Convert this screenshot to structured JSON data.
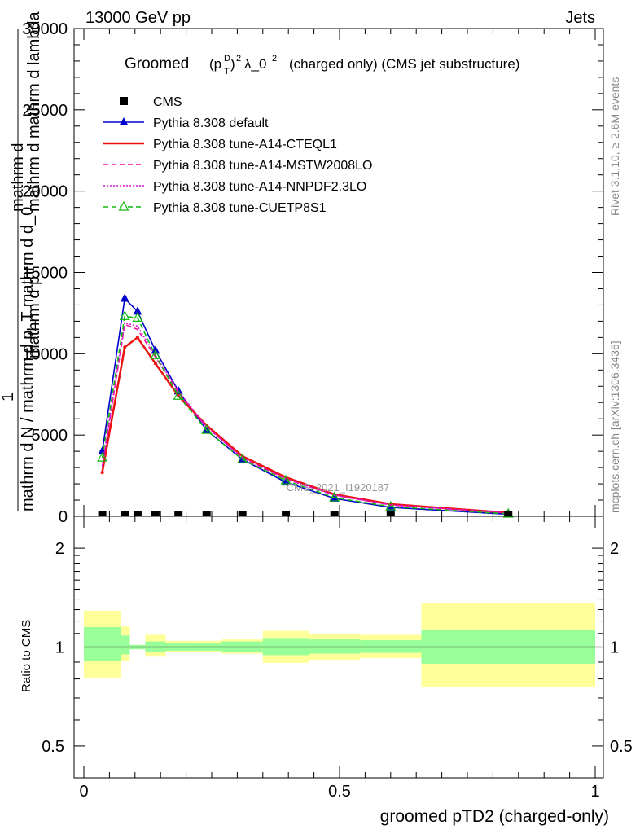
{
  "header": {
    "left": "13000 GeV pp",
    "right": "Jets",
    "right_side_1": "Rivet 3.1.10, ≥ 2.6M events",
    "right_side_2": "mcplots.cern.ch [arXiv:1306.3436]"
  },
  "main_panel": {
    "title_prefix": "Groomed",
    "title_sup1": "D",
    "title_sub1": "T",
    "title_sup2": "2",
    "title_lambda": "λ_0",
    "title_sup3": "2",
    "title_suffix": "(charged only) (CMS jet substructure)",
    "ylabel_top": "mathrm d",
    "ylabel_top_sup": "2",
    "ylabel_top2": "N",
    "ylabel_mid": "mathrm d p",
    "ylabel_mid_sub": "T",
    "ylabel_mid2": "mathrm d mathrm d lambda",
    "ylabel_frac_top": "1",
    "ylabel_bottom": "mathrm d N / mathrm d p_T mathrm d d_0",
    "watermark": "CMS_2021_I1920187",
    "yticks": [
      "0",
      "5000",
      "10000",
      "15000",
      "20000",
      "25000",
      "30000"
    ]
  },
  "ratio_panel": {
    "ylabel": "Ratio to CMS",
    "yticks": [
      "0.5",
      "1",
      "2"
    ]
  },
  "xaxis": {
    "label": "groomed pTD2 (charged-only)",
    "ticks": [
      "0",
      "0.5",
      "1"
    ]
  },
  "legend": [
    {
      "label": "CMS",
      "color": "#000000",
      "style": "square"
    },
    {
      "label": "Pythia 8.308 default",
      "color": "#0000cc",
      "style": "solid-triangle"
    },
    {
      "label": "Pythia 8.308 tune-A14-CTEQL1",
      "color": "#ee1111",
      "style": "solid"
    },
    {
      "label": "Pythia 8.308 tune-A14-MSTW2008LO",
      "color": "#ee1199",
      "style": "dashed"
    },
    {
      "label": "Pythia 8.308 tune-A14-NNPDF2.3LO",
      "color": "#dd11dd",
      "style": "dotted"
    },
    {
      "label": "Pythia 8.308 tune-CUETP8S1",
      "color": "#11bb11",
      "style": "dashed-open-triangle"
    }
  ],
  "chart_data": [
    {
      "type": "line",
      "xlim": [
        0,
        1
      ],
      "ylim": [
        0,
        30000
      ],
      "x": [
        0.036,
        0.08,
        0.105,
        0.14,
        0.185,
        0.24,
        0.31,
        0.395,
        0.49,
        0.6,
        0.83
      ],
      "cms_x": [
        0.036,
        0.08,
        0.105,
        0.14,
        0.185,
        0.24,
        0.31,
        0.395,
        0.49,
        0.6,
        0.83
      ],
      "cms_values": [
        0,
        0,
        0,
        0,
        0,
        0,
        0,
        0,
        0,
        0,
        0
      ],
      "series": [
        {
          "name": "Pythia 8.308 default",
          "values": [
            4000,
            13400,
            12600,
            10200,
            7700,
            5300,
            3500,
            2100,
            1100,
            550,
            130
          ]
        },
        {
          "name": "Pythia 8.308 tune-A14-CTEQL1",
          "values": [
            2700,
            10400,
            11000,
            9400,
            7400,
            5600,
            3700,
            2400,
            1350,
            750,
            220
          ]
        },
        {
          "name": "Pythia 8.308 tune-A14-MSTW2008LO",
          "values": [
            3000,
            11800,
            11500,
            9800,
            7600,
            5500,
            3600,
            2300,
            1300,
            700,
            200
          ]
        },
        {
          "name": "Pythia 8.308 tune-A14-NNPDF2.3LO",
          "values": [
            3100,
            11900,
            11700,
            9900,
            7700,
            5500,
            3600,
            2300,
            1300,
            700,
            200
          ]
        },
        {
          "name": "Pythia 8.308 tune-CUETP8S1",
          "values": [
            3600,
            12300,
            12200,
            9900,
            7400,
            5300,
            3500,
            2200,
            1150,
            600,
            150
          ]
        }
      ]
    },
    {
      "type": "area",
      "ylim": [
        0.4,
        2.5
      ],
      "yscale": "log",
      "bins": [
        {
          "x0": 0.0,
          "x1": 0.072,
          "inner": [
            0.905,
            1.15
          ],
          "outer": [
            0.805,
            1.29
          ]
        },
        {
          "x0": 0.072,
          "x1": 0.09,
          "inner": [
            0.95,
            1.085
          ],
          "outer": [
            0.91,
            1.155
          ]
        },
        {
          "x0": 0.09,
          "x1": 0.12,
          "inner": [
            0.985,
            1.015
          ],
          "outer": [
            0.985,
            1.015
          ]
        },
        {
          "x0": 0.12,
          "x1": 0.16,
          "inner": [
            0.965,
            1.04
          ],
          "outer": [
            0.935,
            1.09
          ]
        },
        {
          "x0": 0.16,
          "x1": 0.21,
          "inner": [
            0.975,
            1.03
          ],
          "outer": [
            0.965,
            1.045
          ]
        },
        {
          "x0": 0.21,
          "x1": 0.27,
          "inner": [
            0.975,
            1.025
          ],
          "outer": [
            0.965,
            1.045
          ]
        },
        {
          "x0": 0.27,
          "x1": 0.35,
          "inner": [
            0.965,
            1.04
          ],
          "outer": [
            0.955,
            1.055
          ]
        },
        {
          "x0": 0.35,
          "x1": 0.44,
          "inner": [
            0.945,
            1.065
          ],
          "outer": [
            0.895,
            1.12
          ]
        },
        {
          "x0": 0.44,
          "x1": 0.54,
          "inner": [
            0.955,
            1.055
          ],
          "outer": [
            0.915,
            1.1
          ]
        },
        {
          "x0": 0.54,
          "x1": 0.66,
          "inner": [
            0.96,
            1.05
          ],
          "outer": [
            0.925,
            1.09
          ]
        },
        {
          "x0": 0.66,
          "x1": 1.0,
          "inner": [
            0.89,
            1.125
          ],
          "outer": [
            0.755,
            1.365
          ]
        }
      ],
      "reference": 1
    }
  ]
}
